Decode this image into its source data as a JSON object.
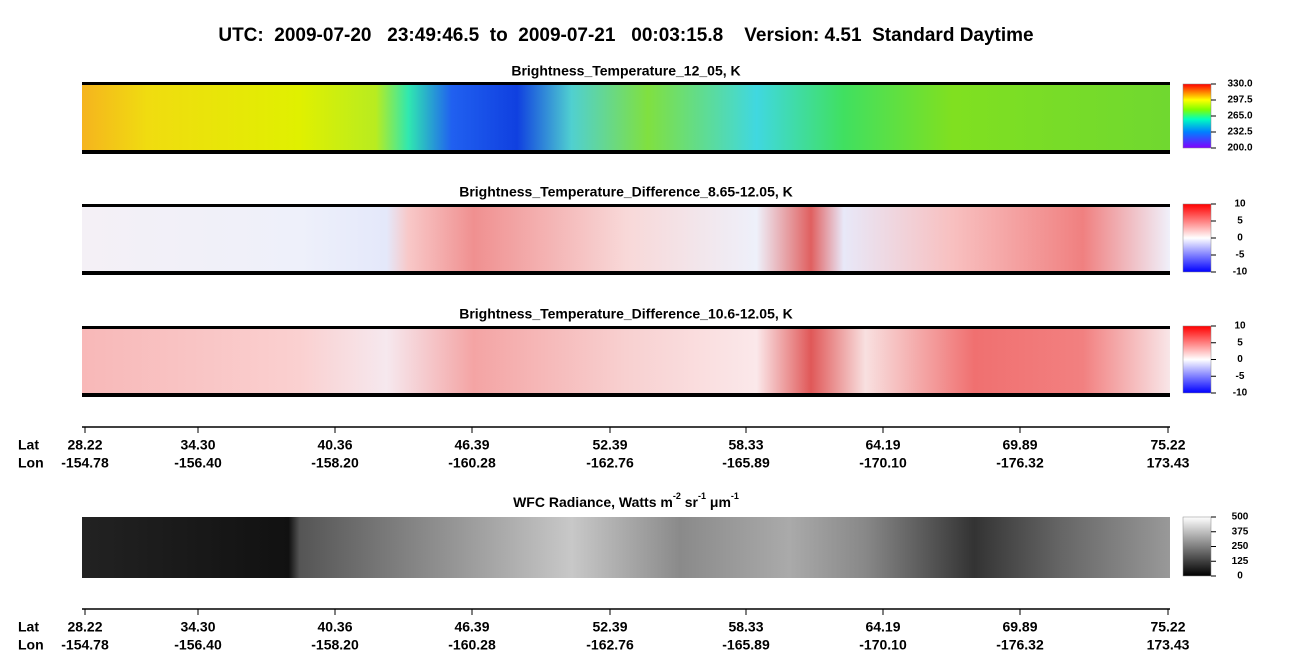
{
  "title": "UTC:  2009-07-20   23:49:46.5  to  2009-07-21   00:03:15.8    Version: 4.51  Standard Daytime",
  "panels": [
    {
      "title": "Brightness_Temperature_12_05, K",
      "colorbar": [
        "330.0",
        "297.5",
        "265.0",
        "232.5",
        "200.0"
      ]
    },
    {
      "title": "Brightness_Temperature_Difference_8.65-12.05, K",
      "colorbar": [
        "10",
        "5",
        "0",
        "-5",
        "-10"
      ]
    },
    {
      "title": "Brightness_Temperature_Difference_10.6-12.05, K",
      "colorbar": [
        "10",
        "5",
        "0",
        "-5",
        "-10"
      ]
    },
    {
      "title": [
        "WFC Radiance, Watts m",
        "-2",
        " sr",
        "-1",
        " μm",
        "-1"
      ],
      "colorbar": [
        "500",
        "375",
        "250",
        "125",
        "0"
      ]
    }
  ],
  "axes": [
    {
      "rows": [
        "Lat",
        "Lon"
      ],
      "lat": [
        "28.22",
        "34.30",
        "40.36",
        "46.39",
        "52.39",
        "58.33",
        "64.19",
        "69.89",
        "75.22"
      ],
      "lon": [
        "-154.78",
        "-156.40",
        "-158.20",
        "-160.28",
        "-162.76",
        "-165.89",
        "-170.10",
        "-176.32",
        "173.43"
      ]
    },
    {
      "rows": [
        "Lat",
        "Lon"
      ],
      "lat": [
        "28.22",
        "34.30",
        "40.36",
        "46.39",
        "52.39",
        "58.33",
        "64.19",
        "69.89",
        "75.22"
      ],
      "lon": [
        "-154.78",
        "-156.40",
        "-158.20",
        "-160.28",
        "-162.76",
        "-165.89",
        "-170.10",
        "-176.32",
        "173.43"
      ]
    }
  ]
}
